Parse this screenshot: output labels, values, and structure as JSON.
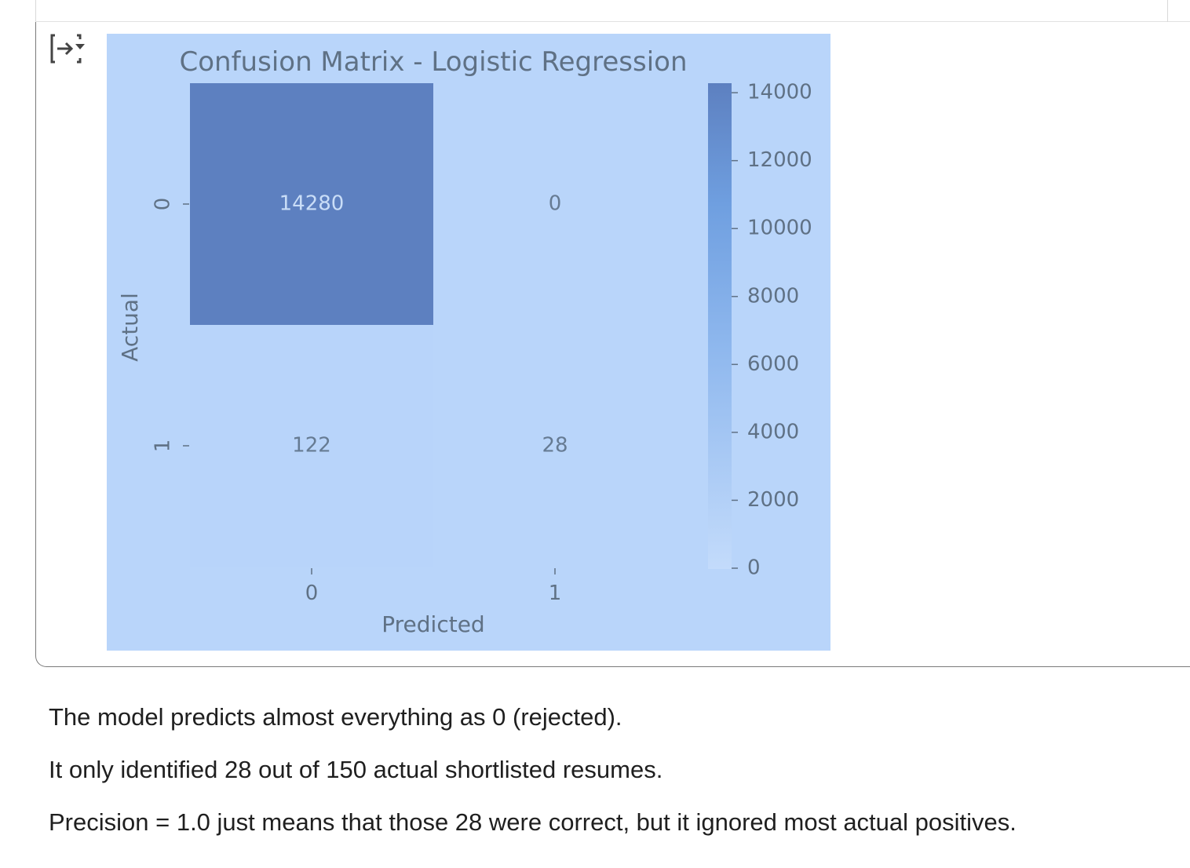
{
  "cell_output": {
    "toggle_icon": "output-collapse-icon"
  },
  "chart_data": {
    "type": "heatmap",
    "title": "Confusion Matrix - Logistic Regression",
    "xlabel": "Predicted",
    "ylabel": "Actual",
    "x_categories": [
      "0",
      "1"
    ],
    "y_categories": [
      "0",
      "1"
    ],
    "values": [
      [
        14280,
        0
      ],
      [
        122,
        28
      ]
    ],
    "annotations": [
      [
        "14280",
        "0"
      ],
      [
        "122",
        "28"
      ]
    ],
    "colorbar": {
      "ticks": [
        0,
        2000,
        4000,
        6000,
        8000,
        10000,
        12000,
        14000
      ],
      "tick_labels": [
        "0",
        "2000",
        "4000",
        "6000",
        "8000",
        "10000",
        "12000",
        "14000"
      ],
      "min": 0,
      "max": 14280
    },
    "colors": {
      "background": "#b9d5fa",
      "low": "#b9d5fa",
      "mid": "#74a6e4",
      "high": "#5d80c0",
      "text": "#5f7185",
      "annotation_dark": "#c9ddf7",
      "annotation_light": "#667b93"
    }
  },
  "markdown": {
    "lines": [
      "The model predicts almost everything as 0 (rejected).",
      "It only identified 28 out of 150 actual shortlisted resumes.",
      "Precision = 1.0 just means that those 28 were correct, but it ignored most actual positives."
    ]
  }
}
